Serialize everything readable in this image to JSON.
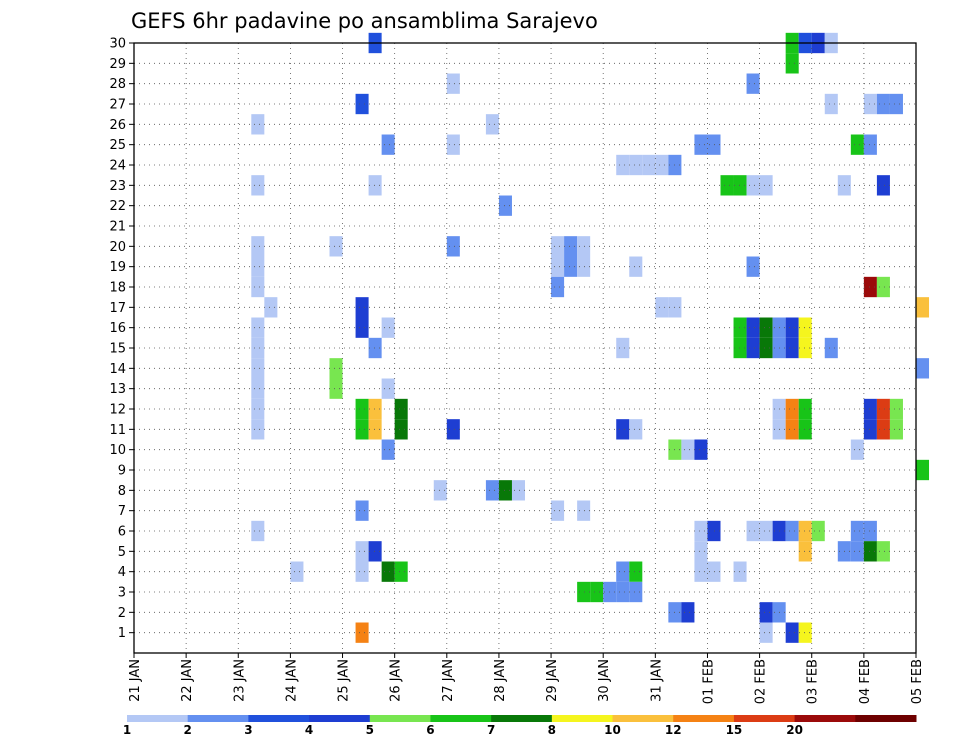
{
  "chart_data": {
    "type": "heatmap",
    "title": "GEFS 6hr padavine po ansamblima Sarajevo",
    "xlabel": "",
    "ylabel": "",
    "x_tick_labels": [
      "21 JAN",
      "22 JAN",
      "23 JAN",
      "24 JAN",
      "25 JAN",
      "26 JAN",
      "27 JAN",
      "28 JAN",
      "29 JAN",
      "30 JAN",
      "31 JAN",
      "01 FEB",
      "02 FEB",
      "03 FEB",
      "04 FEB",
      "05 FEB"
    ],
    "y_tick_labels": [
      "1",
      "2",
      "3",
      "4",
      "5",
      "6",
      "7",
      "8",
      "9",
      "10",
      "11",
      "12",
      "13",
      "14",
      "15",
      "16",
      "17",
      "18",
      "19",
      "20",
      "21",
      "22",
      "23",
      "24",
      "25",
      "26",
      "27",
      "28",
      "29",
      "30"
    ],
    "x_range_days": [
      0,
      15
    ],
    "y_range_members": [
      0,
      30
    ],
    "step_hours": 6,
    "grid": true,
    "legend_position": "bottom",
    "colorbar": {
      "tick_labels": [
        "1",
        "2",
        "3",
        "4",
        "5",
        "6",
        "7",
        "8",
        "10",
        "12",
        "15",
        "20"
      ],
      "colors": [
        "#b4c8f5",
        "#6490f0",
        "#2050dc",
        "#1e3ed2",
        "#78e650",
        "#18c418",
        "#087808",
        "#f5f51e",
        "#fac03c",
        "#f58214",
        "#dc3c14",
        "#9b0a0a",
        "#6e0000"
      ]
    },
    "cells": [
      {
        "m": 30,
        "d": 4.5,
        "c": 2
      },
      {
        "m": 30,
        "d": 12.5,
        "c": 5
      },
      {
        "m": 30,
        "d": 12.75,
        "c": 2
      },
      {
        "m": 30,
        "d": 13.0,
        "c": 3
      },
      {
        "m": 30,
        "d": 13.25,
        "c": 0
      },
      {
        "m": 29,
        "d": 12.5,
        "c": 5
      },
      {
        "m": 28,
        "d": 6.0,
        "c": 0
      },
      {
        "m": 28,
        "d": 11.75,
        "c": 1
      },
      {
        "m": 27,
        "d": 4.25,
        "c": 2
      },
      {
        "m": 27,
        "d": 13.25,
        "c": 0
      },
      {
        "m": 27,
        "d": 14.0,
        "c": 0
      },
      {
        "m": 27,
        "d": 14.25,
        "c": 1
      },
      {
        "m": 27,
        "d": 14.5,
        "c": 1
      },
      {
        "m": 26,
        "d": 2.25,
        "c": 0
      },
      {
        "m": 26,
        "d": 6.75,
        "c": 0
      },
      {
        "m": 25,
        "d": 4.75,
        "c": 1
      },
      {
        "m": 25,
        "d": 6.0,
        "c": 0
      },
      {
        "m": 25,
        "d": 10.75,
        "c": 1
      },
      {
        "m": 25,
        "d": 11.0,
        "c": 1
      },
      {
        "m": 25,
        "d": 13.75,
        "c": 5
      },
      {
        "m": 25,
        "d": 14.0,
        "c": 1
      },
      {
        "m": 24,
        "d": 9.25,
        "c": 0
      },
      {
        "m": 24,
        "d": 9.5,
        "c": 0
      },
      {
        "m": 24,
        "d": 9.75,
        "c": 0
      },
      {
        "m": 24,
        "d": 10.0,
        "c": 0
      },
      {
        "m": 24,
        "d": 10.25,
        "c": 1
      },
      {
        "m": 23,
        "d": 2.25,
        "c": 0
      },
      {
        "m": 23,
        "d": 4.5,
        "c": 0
      },
      {
        "m": 23,
        "d": 11.25,
        "c": 5
      },
      {
        "m": 23,
        "d": 11.5,
        "c": 5
      },
      {
        "m": 23,
        "d": 11.75,
        "c": 0
      },
      {
        "m": 23,
        "d": 12.0,
        "c": 0
      },
      {
        "m": 23,
        "d": 13.5,
        "c": 0
      },
      {
        "m": 23,
        "d": 14.25,
        "c": 3
      },
      {
        "m": 22,
        "d": 7.0,
        "c": 1
      },
      {
        "m": 20,
        "d": 2.25,
        "c": 0
      },
      {
        "m": 20,
        "d": 3.75,
        "c": 0
      },
      {
        "m": 20,
        "d": 6.0,
        "c": 1
      },
      {
        "m": 20,
        "d": 8.0,
        "c": 0
      },
      {
        "m": 20,
        "d": 8.25,
        "c": 1
      },
      {
        "m": 20,
        "d": 8.5,
        "c": 0
      },
      {
        "m": 19,
        "d": 2.25,
        "c": 0
      },
      {
        "m": 19,
        "d": 8.0,
        "c": 0
      },
      {
        "m": 19,
        "d": 8.25,
        "c": 1
      },
      {
        "m": 19,
        "d": 8.5,
        "c": 0
      },
      {
        "m": 19,
        "d": 9.5,
        "c": 0
      },
      {
        "m": 19,
        "d": 11.75,
        "c": 1
      },
      {
        "m": 18,
        "d": 2.25,
        "c": 0
      },
      {
        "m": 18,
        "d": 8.0,
        "c": 1
      },
      {
        "m": 18,
        "d": 14.0,
        "c": 11
      },
      {
        "m": 18,
        "d": 14.25,
        "c": 4
      },
      {
        "m": 17,
        "d": 2.5,
        "c": 0
      },
      {
        "m": 17,
        "d": 4.25,
        "c": 3
      },
      {
        "m": 17,
        "d": 10.0,
        "c": 0
      },
      {
        "m": 17,
        "d": 10.25,
        "c": 0
      },
      {
        "m": 17,
        "d": 15.0,
        "c": 8
      },
      {
        "m": 16,
        "d": 2.25,
        "c": 0
      },
      {
        "m": 16,
        "d": 4.25,
        "c": 3
      },
      {
        "m": 16,
        "d": 4.75,
        "c": 0
      },
      {
        "m": 16,
        "d": 11.5,
        "c": 5
      },
      {
        "m": 16,
        "d": 11.75,
        "c": 3
      },
      {
        "m": 16,
        "d": 12.0,
        "c": 6
      },
      {
        "m": 16,
        "d": 12.25,
        "c": 1
      },
      {
        "m": 16,
        "d": 12.5,
        "c": 3
      },
      {
        "m": 16,
        "d": 12.75,
        "c": 7
      },
      {
        "m": 15,
        "d": 2.25,
        "c": 0
      },
      {
        "m": 15,
        "d": 4.5,
        "c": 1
      },
      {
        "m": 15,
        "d": 9.25,
        "c": 0
      },
      {
        "m": 15,
        "d": 11.5,
        "c": 5
      },
      {
        "m": 15,
        "d": 11.75,
        "c": 3
      },
      {
        "m": 15,
        "d": 12.0,
        "c": 6
      },
      {
        "m": 15,
        "d": 12.25,
        "c": 1
      },
      {
        "m": 15,
        "d": 12.5,
        "c": 3
      },
      {
        "m": 15,
        "d": 12.75,
        "c": 7
      },
      {
        "m": 15,
        "d": 13.25,
        "c": 1
      },
      {
        "m": 14,
        "d": 2.25,
        "c": 0
      },
      {
        "m": 14,
        "d": 3.75,
        "c": 4
      },
      {
        "m": 14,
        "d": 15.0,
        "c": 1
      },
      {
        "m": 13,
        "d": 2.25,
        "c": 0
      },
      {
        "m": 13,
        "d": 3.75,
        "c": 4
      },
      {
        "m": 13,
        "d": 4.75,
        "c": 0
      },
      {
        "m": 12,
        "d": 2.25,
        "c": 0
      },
      {
        "m": 12,
        "d": 4.25,
        "c": 5
      },
      {
        "m": 12,
        "d": 4.5,
        "c": 8
      },
      {
        "m": 12,
        "d": 5.0,
        "c": 6
      },
      {
        "m": 12,
        "d": 12.25,
        "c": 0
      },
      {
        "m": 12,
        "d": 12.5,
        "c": 9
      },
      {
        "m": 12,
        "d": 12.75,
        "c": 5
      },
      {
        "m": 12,
        "d": 14.0,
        "c": 3
      },
      {
        "m": 12,
        "d": 14.25,
        "c": 10
      },
      {
        "m": 12,
        "d": 14.5,
        "c": 4
      },
      {
        "m": 11,
        "d": 2.25,
        "c": 0
      },
      {
        "m": 11,
        "d": 4.25,
        "c": 5
      },
      {
        "m": 11,
        "d": 4.5,
        "c": 8
      },
      {
        "m": 11,
        "d": 5.0,
        "c": 6
      },
      {
        "m": 11,
        "d": 6.0,
        "c": 3
      },
      {
        "m": 11,
        "d": 9.25,
        "c": 3
      },
      {
        "m": 11,
        "d": 9.5,
        "c": 0
      },
      {
        "m": 11,
        "d": 12.25,
        "c": 0
      },
      {
        "m": 11,
        "d": 12.5,
        "c": 9
      },
      {
        "m": 11,
        "d": 12.75,
        "c": 5
      },
      {
        "m": 11,
        "d": 14.0,
        "c": 3
      },
      {
        "m": 11,
        "d": 14.25,
        "c": 10
      },
      {
        "m": 11,
        "d": 14.5,
        "c": 4
      },
      {
        "m": 10,
        "d": 4.75,
        "c": 1
      },
      {
        "m": 10,
        "d": 10.25,
        "c": 4
      },
      {
        "m": 10,
        "d": 10.5,
        "c": 0
      },
      {
        "m": 10,
        "d": 10.75,
        "c": 3
      },
      {
        "m": 10,
        "d": 13.75,
        "c": 0
      },
      {
        "m": 9,
        "d": 15.0,
        "c": 5
      },
      {
        "m": 8,
        "d": 5.75,
        "c": 0
      },
      {
        "m": 8,
        "d": 6.75,
        "c": 1
      },
      {
        "m": 8,
        "d": 7.0,
        "c": 6
      },
      {
        "m": 8,
        "d": 7.25,
        "c": 0
      },
      {
        "m": 7,
        "d": 4.25,
        "c": 1
      },
      {
        "m": 7,
        "d": 8.0,
        "c": 0
      },
      {
        "m": 7,
        "d": 8.5,
        "c": 0
      },
      {
        "m": 6,
        "d": 2.25,
        "c": 0
      },
      {
        "m": 6,
        "d": 10.75,
        "c": 0
      },
      {
        "m": 6,
        "d": 11.0,
        "c": 3
      },
      {
        "m": 6,
        "d": 11.75,
        "c": 0
      },
      {
        "m": 6,
        "d": 12.0,
        "c": 0
      },
      {
        "m": 6,
        "d": 12.25,
        "c": 3
      },
      {
        "m": 6,
        "d": 12.5,
        "c": 1
      },
      {
        "m": 6,
        "d": 12.75,
        "c": 8
      },
      {
        "m": 6,
        "d": 13.0,
        "c": 4
      },
      {
        "m": 6,
        "d": 13.75,
        "c": 1
      },
      {
        "m": 6,
        "d": 14.0,
        "c": 1
      },
      {
        "m": 5,
        "d": 4.25,
        "c": 0
      },
      {
        "m": 5,
        "d": 4.5,
        "c": 3
      },
      {
        "m": 5,
        "d": 10.75,
        "c": 0
      },
      {
        "m": 5,
        "d": 12.75,
        "c": 8
      },
      {
        "m": 5,
        "d": 13.5,
        "c": 1
      },
      {
        "m": 5,
        "d": 13.75,
        "c": 1
      },
      {
        "m": 5,
        "d": 14.0,
        "c": 6
      },
      {
        "m": 5,
        "d": 14.25,
        "c": 4
      },
      {
        "m": 4,
        "d": 3.0,
        "c": 0
      },
      {
        "m": 4,
        "d": 4.25,
        "c": 0
      },
      {
        "m": 4,
        "d": 4.75,
        "c": 6
      },
      {
        "m": 4,
        "d": 5.0,
        "c": 5
      },
      {
        "m": 4,
        "d": 9.25,
        "c": 1
      },
      {
        "m": 4,
        "d": 9.5,
        "c": 5
      },
      {
        "m": 4,
        "d": 10.75,
        "c": 0
      },
      {
        "m": 4,
        "d": 11.0,
        "c": 0
      },
      {
        "m": 4,
        "d": 11.5,
        "c": 0
      },
      {
        "m": 3,
        "d": 8.5,
        "c": 5
      },
      {
        "m": 3,
        "d": 8.75,
        "c": 5
      },
      {
        "m": 3,
        "d": 9.0,
        "c": 1
      },
      {
        "m": 3,
        "d": 9.25,
        "c": 1
      },
      {
        "m": 3,
        "d": 9.5,
        "c": 1
      },
      {
        "m": 2,
        "d": 10.25,
        "c": 1
      },
      {
        "m": 2,
        "d": 10.5,
        "c": 3
      },
      {
        "m": 2,
        "d": 12.0,
        "c": 3
      },
      {
        "m": 2,
        "d": 12.25,
        "c": 1
      },
      {
        "m": 1,
        "d": 4.25,
        "c": 9
      },
      {
        "m": 1,
        "d": 12.0,
        "c": 0
      },
      {
        "m": 1,
        "d": 12.5,
        "c": 3
      },
      {
        "m": 1,
        "d": 12.75,
        "c": 7
      }
    ]
  }
}
